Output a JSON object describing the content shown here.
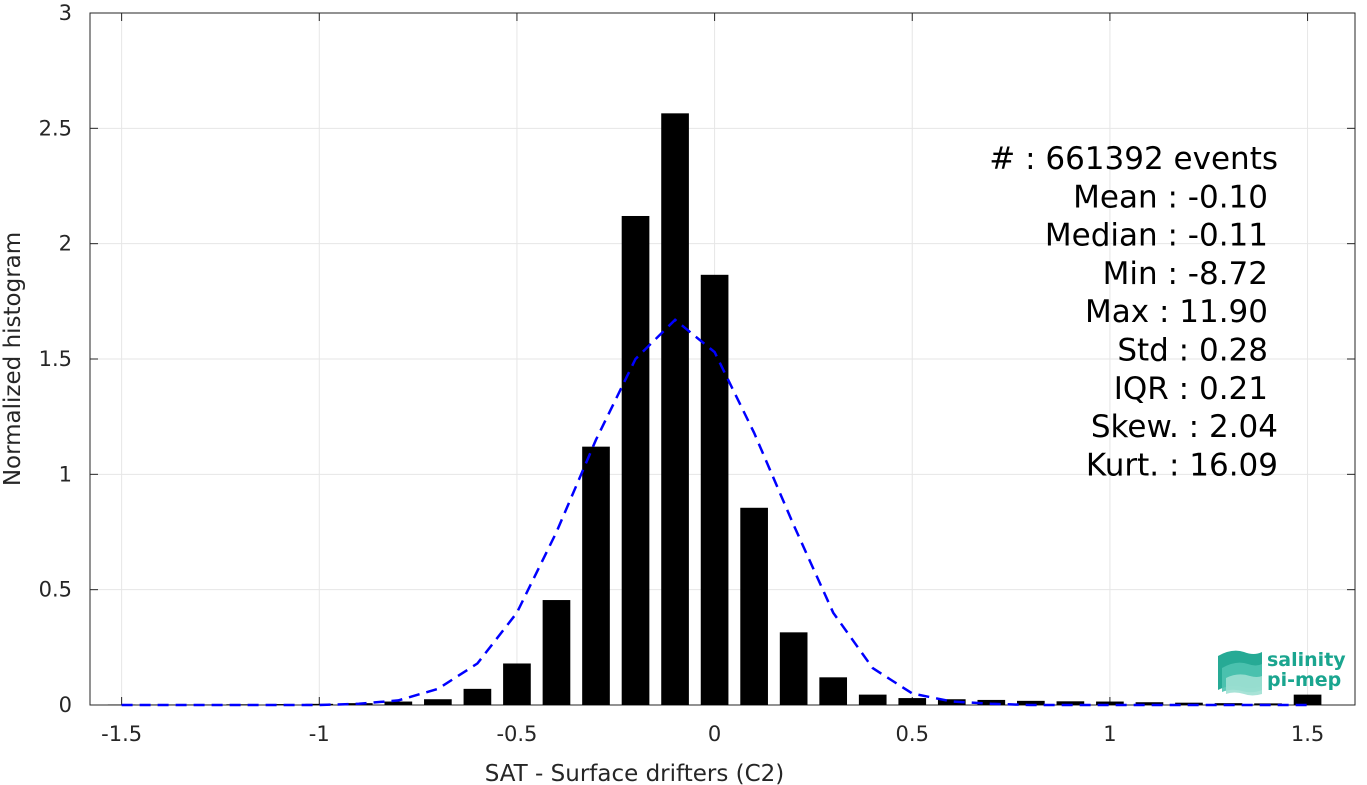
{
  "chart_data": {
    "type": "bar",
    "xlabel": "SAT - Surface drifters (C2)",
    "ylabel": "Normalized histogram",
    "xlim": [
      -1.58,
      1.62
    ],
    "ylim": [
      0,
      3
    ],
    "xticks": [
      -1.5,
      -1,
      -0.5,
      0,
      0.5,
      1,
      1.5
    ],
    "xtick_labels": [
      "-1.5",
      "-1",
      "-0.5",
      "0",
      "0.5",
      "1",
      "1.5"
    ],
    "yticks": [
      0,
      0.5,
      1,
      1.5,
      2,
      2.5,
      3
    ],
    "ytick_labels": [
      "0",
      "0.5",
      "1",
      "1.5",
      "2",
      "2.5",
      "3"
    ],
    "grid": true,
    "bar_width": 0.07,
    "bars": {
      "x": [
        -1.5,
        -1.4,
        -1.3,
        -1.2,
        -1.1,
        -1.0,
        -0.9,
        -0.8,
        -0.7,
        -0.6,
        -0.5,
        -0.4,
        -0.3,
        -0.2,
        -0.1,
        0.0,
        0.1,
        0.2,
        0.3,
        0.4,
        0.5,
        0.6,
        0.7,
        0.8,
        0.9,
        1.0,
        1.1,
        1.2,
        1.3,
        1.4,
        1.5
      ],
      "values": [
        0.002,
        0.002,
        0.002,
        0.003,
        0.004,
        0.005,
        0.008,
        0.015,
        0.025,
        0.07,
        0.18,
        0.455,
        1.12,
        2.12,
        2.565,
        1.865,
        0.855,
        0.315,
        0.12,
        0.045,
        0.03,
        0.025,
        0.022,
        0.018,
        0.016,
        0.015,
        0.012,
        0.01,
        0.008,
        0.007,
        0.045
      ],
      "color": "#000000"
    },
    "fit_curve": {
      "style": "dashed",
      "color": "#0000ff",
      "x": [
        -1.5,
        -1.4,
        -1.3,
        -1.2,
        -1.1,
        -1.0,
        -0.9,
        -0.8,
        -0.7,
        -0.6,
        -0.5,
        -0.4,
        -0.3,
        -0.2,
        -0.1,
        0.0,
        0.1,
        0.2,
        0.3,
        0.4,
        0.5,
        0.6,
        0.7,
        0.8,
        0.9,
        1.0,
        1.1,
        1.2,
        1.3,
        1.4,
        1.5
      ],
      "values": [
        0.0,
        0.0,
        0.0,
        0.0,
        0.0,
        0.0,
        0.005,
        0.02,
        0.07,
        0.18,
        0.4,
        0.75,
        1.15,
        1.5,
        1.67,
        1.53,
        1.18,
        0.78,
        0.4,
        0.16,
        0.05,
        0.015,
        0.005,
        0.0,
        0.0,
        0.0,
        0.0,
        0.0,
        0.0,
        0.0,
        0.0
      ]
    },
    "annotations": [
      {
        "label": "#  : 661392 events"
      },
      {
        "label": "Mean : -0.10"
      },
      {
        "label": "Median : -0.11"
      },
      {
        "label": "Min : -8.72"
      },
      {
        "label": "Max : 11.90"
      },
      {
        "label": "Std : 0.28"
      },
      {
        "label": "IQR : 0.21"
      },
      {
        "label": "Skew. : 2.04"
      },
      {
        "label": "Kurt. : 16.09"
      }
    ]
  },
  "logo": {
    "line1": "salinity",
    "line2": "pi-mep",
    "color": "#1aa58f"
  }
}
